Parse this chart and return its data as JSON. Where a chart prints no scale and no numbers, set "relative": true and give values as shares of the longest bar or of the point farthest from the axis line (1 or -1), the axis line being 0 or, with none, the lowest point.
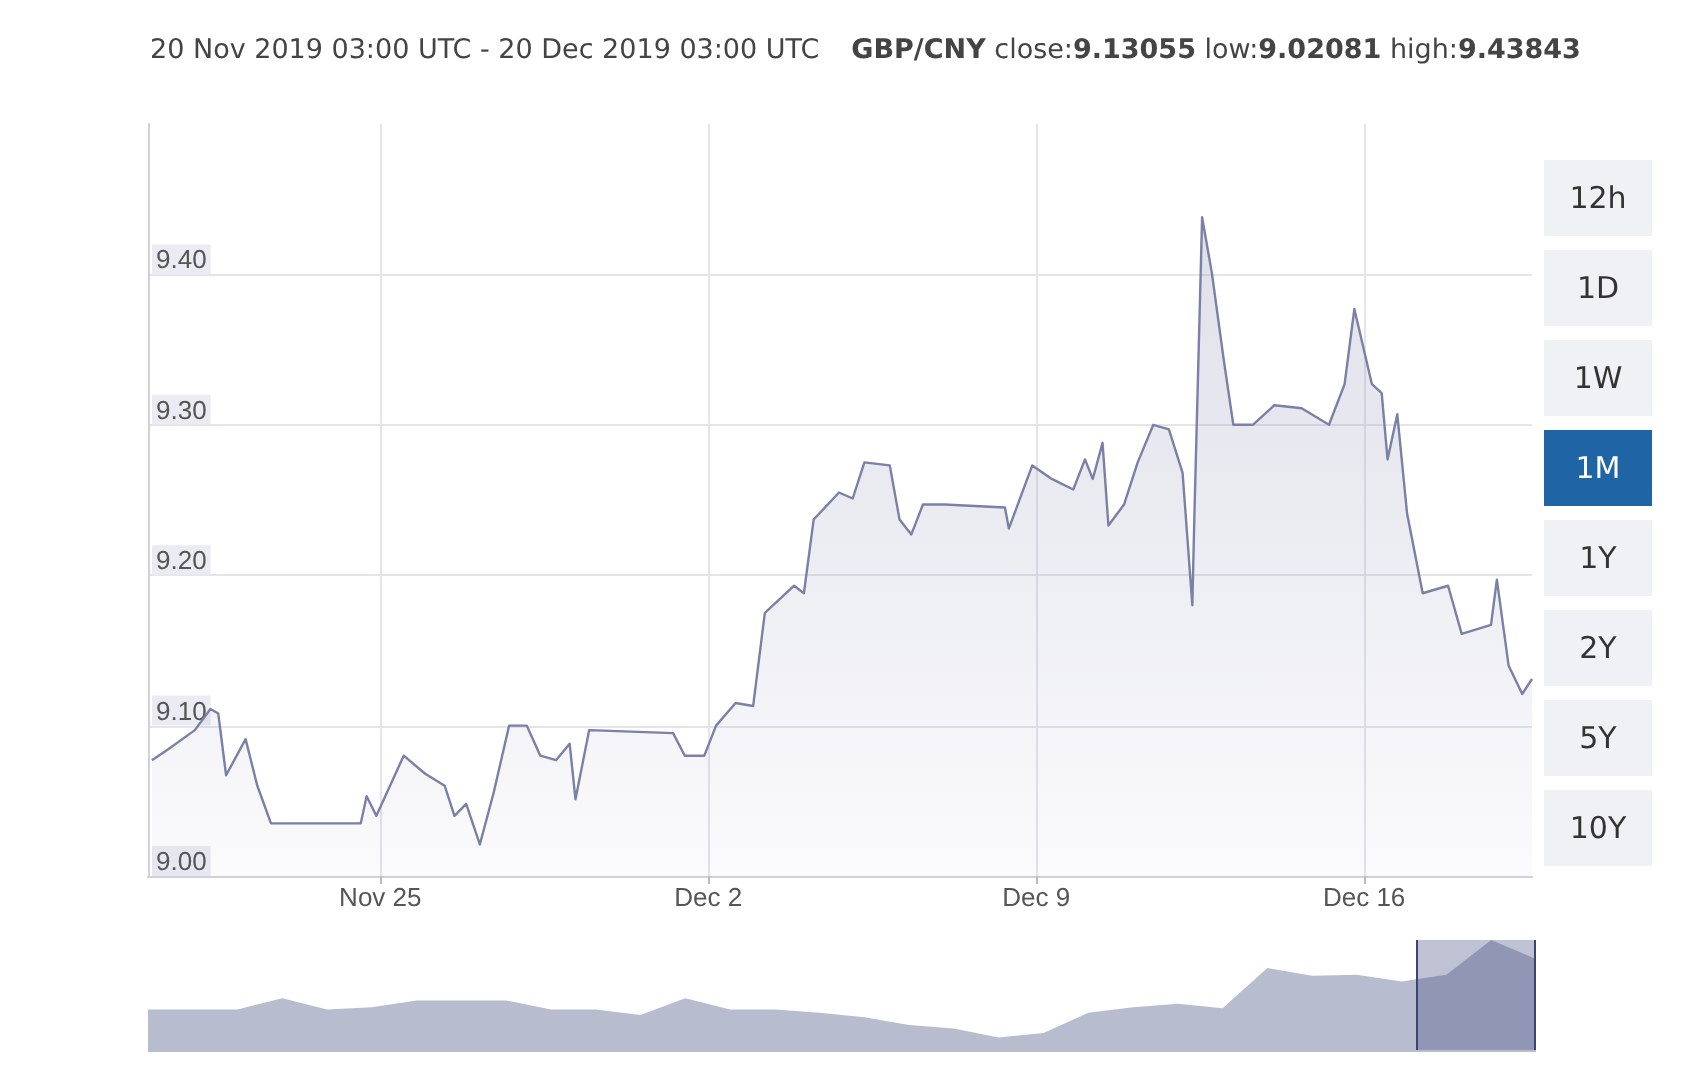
{
  "chart_data": [
    {
      "type": "area",
      "title": "20 Nov 2019 03:00 UTC - 20 Dec 2019 03:00 UTC",
      "subtitle": "GBP/CNY close:9.13055 low:9.02081 high:9.43843",
      "x": [
        "2019-11-20T03:00",
        "2019-11-20T11:00",
        "2019-11-21T01:00",
        "2019-11-21T09:00",
        "2019-11-21T13:00",
        "2019-11-21T17:00",
        "2019-11-22T03:00",
        "2019-11-22T09:00",
        "2019-11-22T16:00",
        "2019-11-24T14:00",
        "2019-11-24T17:00",
        "2019-11-24T22:00",
        "2019-11-25T12:00",
        "2019-11-25T23:00",
        "2019-11-26T09:00",
        "2019-11-26T14:00",
        "2019-11-26T20:00",
        "2019-11-27T03:00",
        "2019-11-27T10:00",
        "2019-11-27T18:00",
        "2019-11-28T03:00",
        "2019-11-28T10:00",
        "2019-11-28T18:00",
        "2019-11-29T01:00",
        "2019-11-29T04:00",
        "2019-11-29T11:00",
        "2019-12-01T06:00",
        "2019-12-01T12:00",
        "2019-12-01T22:00",
        "2019-12-02T04:00",
        "2019-12-02T14:00",
        "2019-12-02T23:00",
        "2019-12-03T05:00",
        "2019-12-03T20:00",
        "2019-12-04T01:00",
        "2019-12-04T06:00",
        "2019-12-04T19:00",
        "2019-12-05T02:00",
        "2019-12-05T08:00",
        "2019-12-05T21:00",
        "2019-12-06T02:00",
        "2019-12-06T08:00",
        "2019-12-06T14:00",
        "2019-12-07T01:00",
        "2019-12-08T08:00",
        "2019-12-08T10:00",
        "2019-12-08T22:00",
        "2019-12-09T08:00",
        "2019-12-09T19:00",
        "2019-12-10T01:00",
        "2019-12-10T05:00",
        "2019-12-10T10:00",
        "2019-12-10T13:00",
        "2019-12-10T21:00",
        "2019-12-11T04:00",
        "2019-12-11T12:00",
        "2019-12-11T20:00",
        "2019-12-12T03:00",
        "2019-12-12T08:00",
        "2019-12-12T09:00",
        "2019-12-12T13:00",
        "2019-12-12T18:00",
        "2019-12-13T00:00",
        "2019-12-13T05:00",
        "2019-12-13T15:00",
        "2019-12-14T02:00",
        "2019-12-14T16:00",
        "2019-12-15T06:00",
        "2019-12-15T14:00",
        "2019-12-15T19:00",
        "2019-12-16T04:00",
        "2019-12-16T09:00",
        "2019-12-16T12:00",
        "2019-12-16T17:00",
        "2019-12-16T22:00",
        "2019-12-17T06:00",
        "2019-12-17T19:00",
        "2019-12-18T02:00",
        "2019-12-18T17:00",
        "2019-12-18T20:00",
        "2019-12-19T02:00",
        "2019-12-19T09:00",
        "2019-12-19T14:00"
      ],
      "series": [
        {
          "color": "#7a80a6",
          "values": [
            9.077,
            9.084,
            9.097,
            9.111,
            9.108,
            9.067,
            9.091,
            9.06,
            9.035,
            9.035,
            9.053,
            9.04,
            9.08,
            9.068,
            9.06,
            9.04,
            9.048,
            9.021,
            9.055,
            9.1,
            9.1,
            9.08,
            9.077,
            9.088,
            9.051,
            9.097,
            9.095,
            9.08,
            9.08,
            9.1,
            9.115,
            9.113,
            9.175,
            9.193,
            9.188,
            9.237,
            9.255,
            9.251,
            9.275,
            9.273,
            9.237,
            9.227,
            9.247,
            9.247,
            9.245,
            9.231,
            9.273,
            9.264,
            9.257,
            9.277,
            9.264,
            9.288,
            9.233,
            9.247,
            9.275,
            9.3,
            9.297,
            9.268,
            9.18,
            9.237,
            9.438,
            9.401,
            9.344,
            9.3,
            9.3,
            9.313,
            9.311,
            9.3,
            9.327,
            9.377,
            9.327,
            9.321,
            9.277,
            9.307,
            9.241,
            9.188,
            9.193,
            9.161,
            9.167,
            9.197,
            9.14,
            9.121,
            9.131
          ]
        }
      ],
      "xlim": [
        "2019-11-20T01:00",
        "2019-12-19T14:00"
      ],
      "xticks": [
        {
          "value": "2019-11-25",
          "label": "Nov 25"
        },
        {
          "value": "2019-12-02",
          "label": "Dec 2"
        },
        {
          "value": "2019-12-09",
          "label": "Dec 9"
        },
        {
          "value": "2019-12-16",
          "label": "Dec 16"
        }
      ],
      "ylim": [
        9.0,
        9.5
      ],
      "yticks": [
        {
          "value": 9.0,
          "label": "9.00"
        },
        {
          "value": 9.1,
          "label": "9.10"
        },
        {
          "value": 9.2,
          "label": "9.20"
        },
        {
          "value": 9.3,
          "label": "9.30"
        },
        {
          "value": 9.4,
          "label": "9.40"
        }
      ],
      "grid": true,
      "marker": "none"
    },
    {
      "type": "other",
      "categories": [
        "12h",
        "1D",
        "1W",
        "1M",
        "1Y",
        "2Y",
        "5Y",
        "10Y"
      ],
      "colors": [
        "#f0f1f5",
        "#f0f1f5",
        "#f0f1f5",
        "#1f64a4",
        "#f0f1f5",
        "#f0f1f5",
        "#f0f1f5",
        "#f0f1f5"
      ]
    },
    {
      "type": "area",
      "relative": true,
      "categories": [
        null,
        null,
        null,
        null,
        null,
        null,
        null,
        null,
        null,
        null,
        null,
        null,
        null,
        null,
        null,
        null,
        null,
        null,
        null,
        null,
        null,
        null,
        null,
        null,
        null,
        null,
        null,
        null,
        null,
        null,
        null,
        null
      ],
      "values": [
        0.38,
        0.38,
        0.38,
        0.48,
        0.38,
        0.4,
        0.46,
        0.46,
        0.46,
        0.38,
        0.38,
        0.33,
        0.48,
        0.38,
        0.38,
        0.35,
        0.31,
        0.24,
        0.21,
        0.13,
        0.17,
        0.35,
        0.4,
        0.43,
        0.39,
        0.75,
        0.68,
        0.69,
        0.63,
        0.69,
        1,
        0.83
      ],
      "color": "#b8bccf",
      "tick_labels": false
    }
  ]
}
